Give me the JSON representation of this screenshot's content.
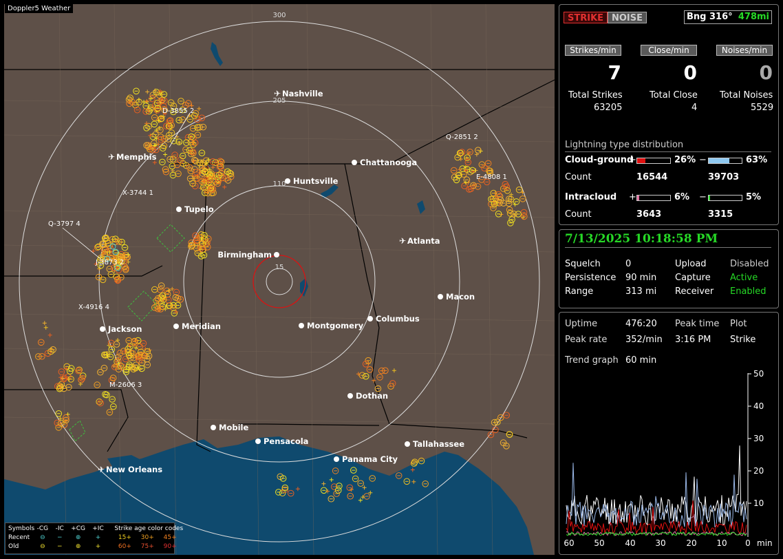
{
  "app": {
    "title": "Doppler5 Weather"
  },
  "map": {
    "range_labels": [
      "300",
      "205",
      "110",
      "15"
    ],
    "cities": [
      {
        "name": "Nashville",
        "airport": true
      },
      {
        "name": "Memphis",
        "airport": true
      },
      {
        "name": "Chattanooga",
        "airport": false
      },
      {
        "name": "Huntsville",
        "airport": false
      },
      {
        "name": "Tupelo",
        "airport": false
      },
      {
        "name": "Atlanta",
        "airport": true
      },
      {
        "name": "Birmingham",
        "airport": false
      },
      {
        "name": "Macon",
        "airport": false
      },
      {
        "name": "Jackson",
        "airport": false
      },
      {
        "name": "Meridian",
        "airport": false
      },
      {
        "name": "Montgomery",
        "airport": false
      },
      {
        "name": "Columbus",
        "airport": false
      },
      {
        "name": "Dothan",
        "airport": false
      },
      {
        "name": "Mobile",
        "airport": false
      },
      {
        "name": "Pensacola",
        "airport": false
      },
      {
        "name": "Tallahassee",
        "airport": false
      },
      {
        "name": "Panama City",
        "airport": false
      },
      {
        "name": "New Orleans",
        "airport": true
      }
    ],
    "storm_labels": [
      "D-3855 2",
      "X-3744 1",
      "Q-3797 4",
      "X-4916 4",
      "M-2606 3",
      "Q-2851 2",
      "E-4808 1",
      "J-3873 2"
    ]
  },
  "legend": {
    "symbols_label": "Symbols",
    "types": [
      "-CG",
      "-IC",
      "+CG",
      "+IC"
    ],
    "age_title": "Strike age color codes",
    "recent_label": "Recent",
    "old_label": "Old",
    "recent_ages": [
      "15+",
      "30+",
      "45+"
    ],
    "old_ages": [
      "60+",
      "75+",
      "90+"
    ]
  },
  "status": {
    "strike_label": "STRIKE",
    "noise_label": "NOISE",
    "bearing": "Bng 316°",
    "distance": "478mi"
  },
  "rates": {
    "strikes_label": "Strikes/min",
    "close_label": "Close/min",
    "noises_label": "Noises/min",
    "strikes_value": "7",
    "close_value": "0",
    "noises_value": "0"
  },
  "totals": {
    "strikes_label": "Total Strikes",
    "close_label": "Total Close",
    "noises_label": "Total Noises",
    "strikes_value": "63205",
    "close_value": "4",
    "noises_value": "5529"
  },
  "distribution": {
    "title": "Lightning type distribution",
    "cg_label": "Cloud-ground",
    "ic_label": "Intracloud",
    "count_label": "Count",
    "cg_pos_pct": "26%",
    "cg_neg_pct": "63%",
    "cg_pos_count": "16544",
    "cg_neg_count": "39703",
    "ic_pos_pct": "6%",
    "ic_neg_pct": "5%",
    "ic_pos_count": "3643",
    "ic_neg_count": "3315",
    "cg_pos_fraction": 0.26,
    "cg_neg_fraction": 0.63,
    "ic_pos_fraction": 0.06,
    "ic_neg_fraction": 0.05,
    "plus": "+",
    "minus": "−"
  },
  "settings": {
    "datetime": "7/13/2025 10:18:58 PM",
    "squelch_label": "Squelch",
    "squelch_value": "0",
    "persistence_label": "Persistence",
    "persistence_value": "90 min",
    "range_label": "Range",
    "range_value": "313 mi",
    "upload_label": "Upload",
    "upload_value": "Disabled",
    "capture_label": "Capture",
    "capture_value": "Active",
    "receiver_label": "Receiver",
    "receiver_value": "Enabled"
  },
  "stats": {
    "uptime_label": "Uptime",
    "uptime_value": "476:20",
    "peaktime_label": "Peak time",
    "peaktime_value": "3:16 PM",
    "plot_label": "Plot",
    "plot_value": "Strike",
    "peakrate_label": "Peak rate",
    "peakrate_value": "352/min",
    "trend_label": "Trend graph",
    "trend_value": "60 min"
  },
  "trend": {
    "y_ticks": [
      "50",
      "40",
      "30",
      "20",
      "10"
    ],
    "x_ticks": [
      "60",
      "50",
      "40",
      "30",
      "20",
      "10",
      "0"
    ],
    "x_unit": "min"
  },
  "colors": {
    "map_land": "#5e5048",
    "water": "#0f4a6e",
    "strike_red": "#c41e1e",
    "active_green": "#26d926",
    "cg_pos": "#e01010",
    "cg_neg": "#8ec8f0",
    "ic_pos": "#e070a0",
    "ic_neg": "#26d926"
  }
}
